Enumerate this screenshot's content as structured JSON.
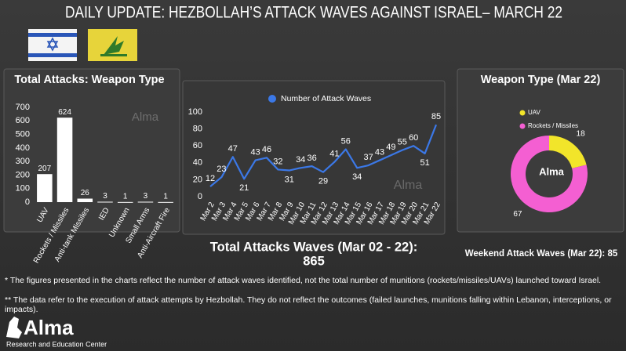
{
  "header": {
    "title": "DAILY UPDATE: HEZBOLLAH’S ATTACK WAVES AGAINST ISRAEL– MARCH 22"
  },
  "watermark": "Alma",
  "chart_data": [
    {
      "type": "bar",
      "title": "Total Attacks: Weapon Type",
      "categories": [
        "UAV",
        "Rockets / Missiles",
        "Anti-tank Missiles",
        "IED",
        "Unknown",
        "Small Arms",
        "Anti-Aircraft Fire"
      ],
      "values": [
        207,
        624,
        26,
        3,
        1,
        3,
        1
      ],
      "color": "#ffffff",
      "ylim": [
        0,
        700
      ],
      "yticks": [
        0,
        100,
        200,
        300,
        400,
        500,
        600,
        700
      ],
      "grid": false
    },
    {
      "type": "line",
      "categories": [
        "Mar 2",
        "Mar 3",
        "Mar 4",
        "Mar 5",
        "Mar 6",
        "Mar 7",
        "Mar 8",
        "Mar 9",
        "Mar 10",
        "Mar 11",
        "Mar 12",
        "Mar 13",
        "Mar 14",
        "Mar 15",
        "Mar 16",
        "Mar 17",
        "Mar 18",
        "Mar 19",
        "Mar 20",
        "Mar 21",
        "Mar 22"
      ],
      "series": [
        {
          "name": "Number of Attack Waves",
          "color": "#3b78e7",
          "values": [
            12,
            23,
            47,
            21,
            43,
            46,
            32,
            31,
            34,
            36,
            29,
            41,
            56,
            34,
            37,
            43,
            49,
            55,
            60,
            51,
            85
          ]
        }
      ],
      "ylim": [
        0,
        100
      ],
      "yticks": [
        0,
        20,
        40,
        60,
        80,
        100
      ],
      "grid": false
    },
    {
      "type": "donut",
      "title": "Weapon Type (Mar 22)",
      "categories": [
        "UAV",
        "Rockets / Missiles"
      ],
      "values": [
        18,
        67
      ],
      "colors": [
        "#f2e52a",
        "#f45fd2"
      ]
    }
  ],
  "summary": {
    "total": {
      "label": "Total Attacks Waves (Mar 02 - 22):",
      "value": 865
    },
    "weekend": {
      "label": "Weekend Attack Waves (Mar 22):",
      "value": 85
    }
  },
  "footnotes": [
    "* The figures presented in the charts reflect the number of attack waves identified, not the total number of munitions (rockets/missiles/UAVs) launched toward Israel.",
    "** The data refer to the execution of attack attempts by Hezbollah. They do not reflect the outcomes (failed launches, munitions falling within Lebanon, interceptions, or impacts)."
  ],
  "logo": {
    "name": "Alma",
    "subtitle": "Research and Education Center"
  }
}
